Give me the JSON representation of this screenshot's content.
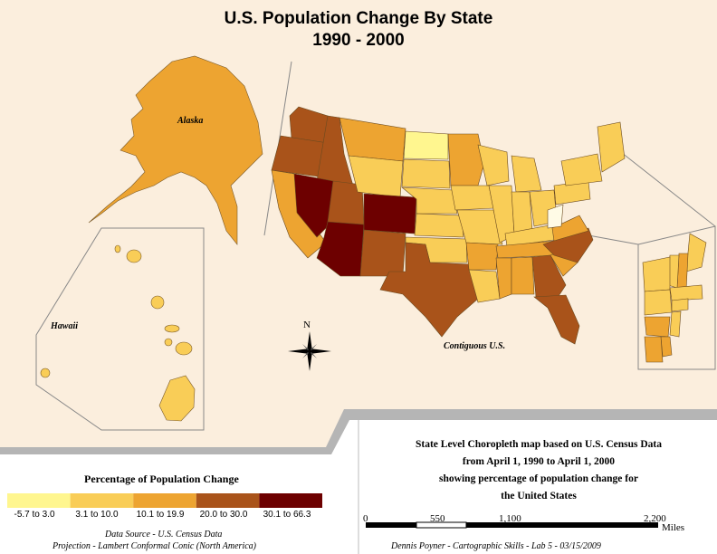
{
  "title": {
    "line1": "U.S. Population Change By State",
    "line2": "1990 - 2000"
  },
  "map_labels": {
    "alaska": "Alaska",
    "hawaii": "Hawaii",
    "contiguous": "Contiguous U.S."
  },
  "description": {
    "line1": "State Level Choropleth map based on U.S. Census Data",
    "line2": "from April 1, 1990 to April 1, 2000",
    "line3": "showing percentage of population change for",
    "line4": "the United States"
  },
  "legend": {
    "title": "Percentage of Population Change",
    "classes": [
      {
        "label": "-5.7 to 3.0",
        "color": "#fff68f"
      },
      {
        "label": "3.1 to 10.0",
        "color": "#f9cd57"
      },
      {
        "label": "10.1 to 19.9",
        "color": "#eda431"
      },
      {
        "label": "20.0 to 30.0",
        "color": "#a9531a"
      },
      {
        "label": "30.1 to 66.3",
        "color": "#6d0000"
      }
    ]
  },
  "credits": {
    "data_source": "Data Source - U.S. Census Data",
    "projection": "Projection - Lambert Conformal Conic (North America)",
    "author": "Dennis Poyner - Cartographic Skills - Lab 5 - 03/15/2009"
  },
  "scale_bar": {
    "ticks": [
      "0",
      "550",
      "1,100",
      "2,200"
    ],
    "unit": "Miles"
  },
  "north_arrow": {
    "label": "N",
    "icon": "compass-rose-icon"
  }
}
